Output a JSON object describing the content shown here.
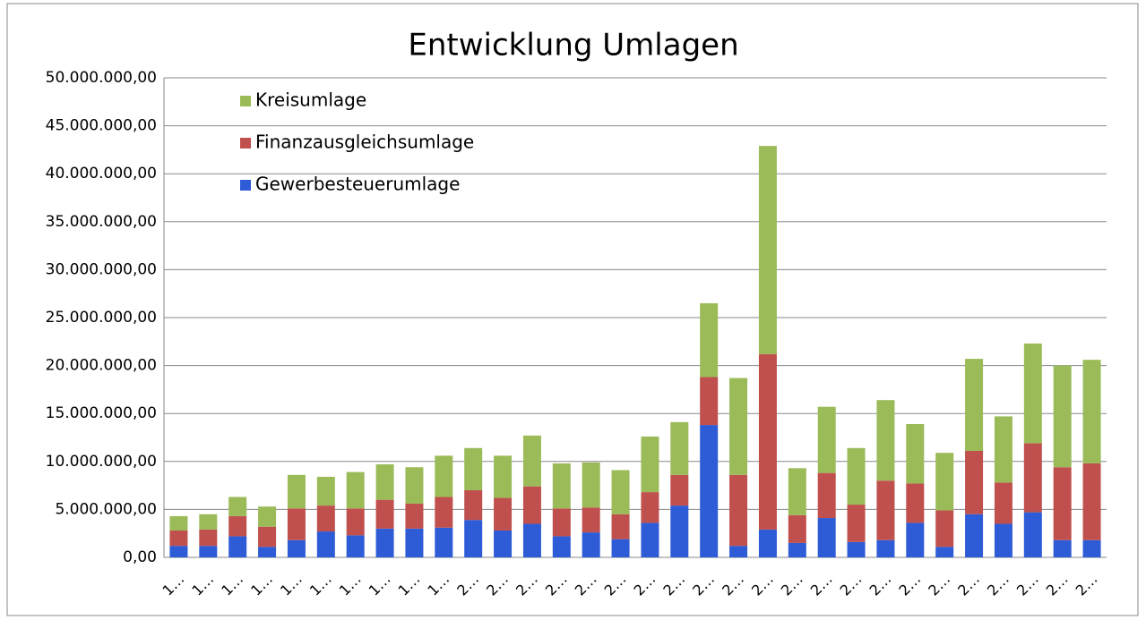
{
  "chart_data": {
    "type": "stacked_bar",
    "title": "Entwicklung Umlagen",
    "categories": [
      "1…",
      "1…",
      "1…",
      "1…",
      "1…",
      "1…",
      "1…",
      "1…",
      "1…",
      "1…",
      "2…",
      "2…",
      "2…",
      "2…",
      "2…",
      "2…",
      "2…",
      "2…",
      "2…",
      "2…",
      "2…",
      "2…",
      "2…",
      "2…",
      "2…",
      "2…",
      "2…",
      "2…",
      "2…",
      "2…",
      "2…",
      "2…"
    ],
    "series": [
      {
        "name": "Gewerbesteuerumlage",
        "color": "#2e5bd6",
        "values": [
          1200000,
          1200000,
          2200000,
          1100000,
          1800000,
          2700000,
          2300000,
          3000000,
          3000000,
          3100000,
          3900000,
          2800000,
          3500000,
          2200000,
          2600000,
          1900000,
          3600000,
          5400000,
          13800000,
          1200000,
          2900000,
          1500000,
          4100000,
          1600000,
          1800000,
          3600000,
          1100000,
          4500000,
          3500000,
          4700000,
          1800000,
          1800000
        ]
      },
      {
        "name": "Finanzausgleichsumlage",
        "color": "#c0504d",
        "values": [
          1600000,
          1700000,
          2100000,
          2100000,
          3300000,
          2700000,
          2800000,
          3000000,
          2600000,
          3200000,
          3100000,
          3400000,
          3900000,
          2900000,
          2600000,
          2600000,
          3200000,
          3200000,
          5000000,
          7400000,
          18300000,
          2900000,
          4700000,
          3900000,
          6200000,
          4100000,
          3800000,
          6600000,
          4300000,
          7200000,
          7600000,
          8000000
        ]
      },
      {
        "name": "Kreisumlage",
        "color": "#9bbb59",
        "values": [
          1500000,
          1600000,
          2000000,
          2100000,
          3500000,
          3000000,
          3800000,
          3700000,
          3800000,
          4300000,
          4400000,
          4400000,
          5300000,
          4700000,
          4700000,
          4600000,
          5800000,
          5500000,
          7700000,
          10100000,
          21700000,
          4900000,
          6900000,
          5900000,
          8400000,
          6200000,
          6000000,
          9600000,
          6900000,
          10400000,
          10600000,
          10800000
        ]
      }
    ],
    "ylim": [
      0,
      50000000
    ],
    "yticks": [
      {
        "value": 0,
        "label": "0,00"
      },
      {
        "value": 5000000,
        "label": "5.000.000,00"
      },
      {
        "value": 10000000,
        "label": "10.000.000,00"
      },
      {
        "value": 15000000,
        "label": "15.000.000,00"
      },
      {
        "value": 20000000,
        "label": "20.000.000,00"
      },
      {
        "value": 25000000,
        "label": "25.000.000,00"
      },
      {
        "value": 30000000,
        "label": "30.000.000,00"
      },
      {
        "value": 35000000,
        "label": "35.000.000,00"
      },
      {
        "value": 40000000,
        "label": "40.000.000,00"
      },
      {
        "value": 45000000,
        "label": "45.000.000,00"
      },
      {
        "value": 50000000,
        "label": "50.000.000,00"
      }
    ],
    "grid": true,
    "legend": "top-left"
  }
}
